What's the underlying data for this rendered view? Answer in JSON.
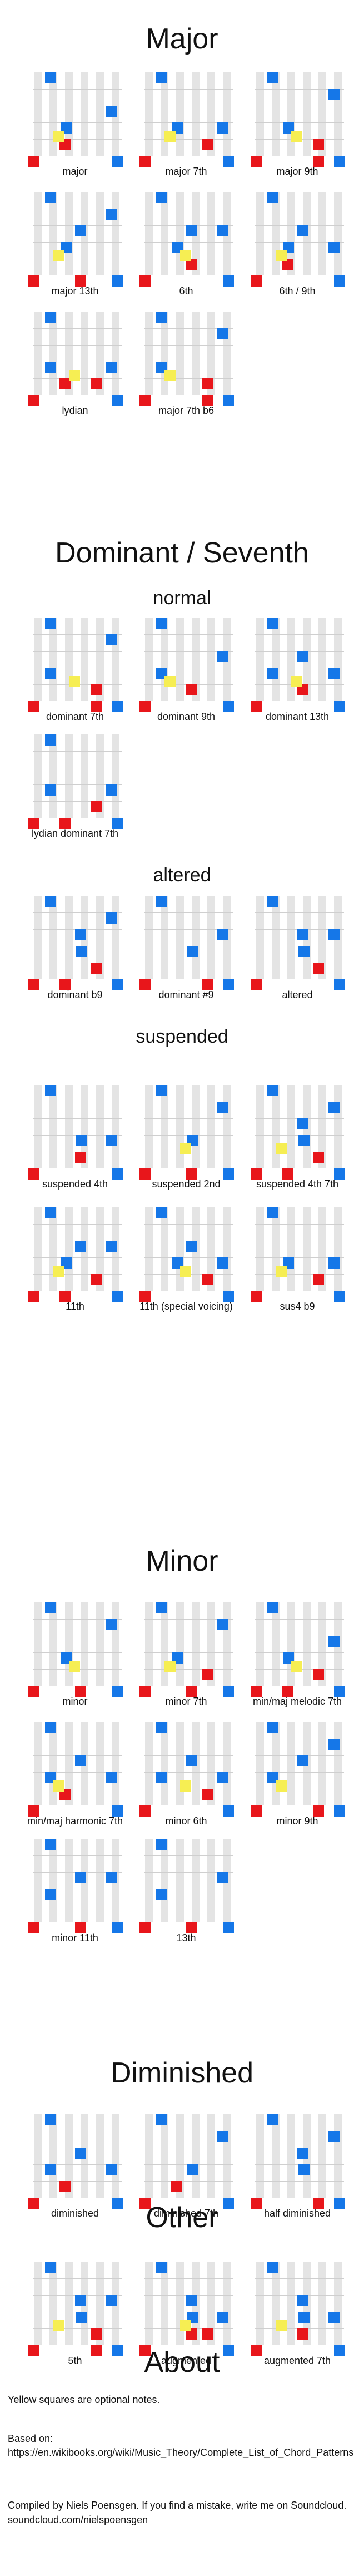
{
  "sections": [
    {
      "title": "Major",
      "chords": [
        {
          "name": "major"
        },
        {
          "name": "major 7th"
        },
        {
          "name": "major 9th"
        },
        {
          "name": "major 13th"
        },
        {
          "name": "6th"
        },
        {
          "name": "6th / 9th"
        },
        {
          "name": "lydian"
        },
        {
          "name": "major 7th b6"
        }
      ]
    },
    {
      "title": "Dominant / Seventh",
      "subsections": [
        {
          "title": "normal",
          "chords": [
            {
              "name": "dominant 7th"
            },
            {
              "name": "dominant 9th"
            },
            {
              "name": "dominant 13th"
            },
            {
              "name": "lydian dominant 7th"
            }
          ]
        },
        {
          "title": "altered",
          "chords": [
            {
              "name": "dominant b9"
            },
            {
              "name": "dominant #9"
            },
            {
              "name": "altered"
            }
          ]
        },
        {
          "title": "suspended",
          "chords": [
            {
              "name": "suspended 4th"
            },
            {
              "name": "suspended 2nd"
            },
            {
              "name": "suspended 4th 7th"
            },
            {
              "name": "11th"
            },
            {
              "name": "11th (special voicing)"
            },
            {
              "name": "sus4 b9"
            }
          ]
        }
      ]
    },
    {
      "title": "Minor",
      "chords": [
        {
          "name": "minor"
        },
        {
          "name": "minor 7th"
        },
        {
          "name": "min/maj melodic 7th"
        },
        {
          "name": "min/maj harmonic 7th"
        },
        {
          "name": "minor 6th"
        },
        {
          "name": "minor 9th"
        },
        {
          "name": "minor 11th"
        },
        {
          "name": "13th"
        }
      ]
    },
    {
      "title": "Diminished",
      "chords": [
        {
          "name": "diminished"
        },
        {
          "name": "diminished 7th"
        },
        {
          "name": "half diminished"
        }
      ]
    },
    {
      "title": "Other",
      "chords": [
        {
          "name": "5th"
        },
        {
          "name": "augmented"
        },
        {
          "name": "augmented 7th"
        }
      ]
    }
  ],
  "about": {
    "title": "About",
    "note": "Yellow squares are optional notes.",
    "based_on_label": "Based on:",
    "based_on_url": "https://en.wikibooks.org/wiki/Music_Theory/Complete_List_of_Chord_Patterns",
    "credit": "Compiled by Niels Poensgen. If you find a mistake, write me on Soundcloud. soundcloud.com/nielspoensgen"
  },
  "colors": {
    "root": "#e8161b",
    "chord_tone": "#1577e8",
    "optional": "#f6ee53",
    "key_bg": "#e4e4e4"
  }
}
